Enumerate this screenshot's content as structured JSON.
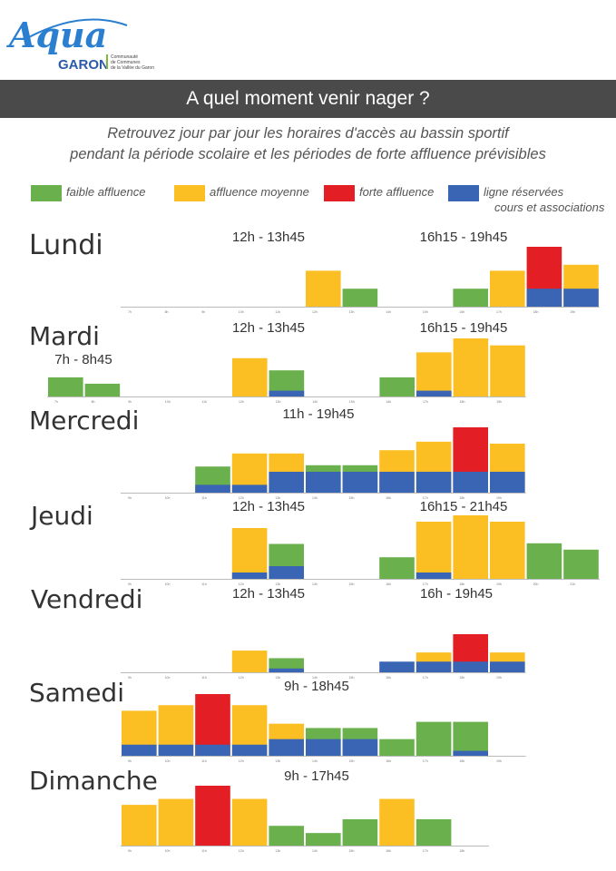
{
  "header": {
    "logo_text_1": "Aqua",
    "logo_text_2": "GARON",
    "logo_tagline": [
      "Communauté",
      "de Communes",
      "de la Vallée du Garon"
    ],
    "title": "A quel moment venir nager ?",
    "subtitle_line1": "Retrouvez jour par jour les horaires d'accès au bassin sportif",
    "subtitle_line2": "pendant la période scolaire et les périodes de forte affluence prévisibles"
  },
  "legend": [
    {
      "label": "faible affluence",
      "color": "#6ab04c"
    },
    {
      "label": "affluence moyenne",
      "color": "#fbbf24"
    },
    {
      "label": "forte affluence",
      "color": "#e31e24"
    },
    {
      "label": "ligne réservées",
      "label2": "cours et associations",
      "color": "#3a64b4"
    }
  ],
  "colors": {
    "faible": "#6ab04c",
    "moyenne": "#fbbf24",
    "forte": "#e31e24",
    "reserve": "#3a64b4",
    "axis": "#bbbbbb",
    "tick": "#777777"
  },
  "chart_data": [
    {
      "type": "bar",
      "day": "Lundi",
      "hour_labels": [
        "7h",
        "8h",
        "9h",
        "10h",
        "11h",
        "12h",
        "13h",
        "14h",
        "15h",
        "16h",
        "17h",
        "18h",
        "19h"
      ],
      "schedule_labels": [
        "12h - 13h45",
        "16h15 - 19h45"
      ],
      "bars": [
        {
          "hour": "12h",
          "value": 0.6,
          "level": "moyenne",
          "reserved": 0
        },
        {
          "hour": "13h",
          "value": 0.3,
          "level": "faible",
          "reserved": 0
        },
        {
          "hour": "16h",
          "value": 0.3,
          "level": "faible",
          "reserved": 0
        },
        {
          "hour": "17h",
          "value": 0.6,
          "level": "moyenne",
          "reserved": 0
        },
        {
          "hour": "18h",
          "value": 1.0,
          "level": "forte",
          "reserved": 0.3
        },
        {
          "hour": "19h",
          "value": 0.7,
          "level": "moyenne",
          "reserved": 0.3
        }
      ]
    },
    {
      "type": "bar",
      "day": "Mardi",
      "hour_labels": [
        "7h",
        "8h",
        "9h",
        "10h",
        "11h",
        "12h",
        "13h",
        "14h",
        "15h",
        "16h",
        "17h",
        "18h",
        "19h"
      ],
      "schedule_labels": [
        "7h - 8h45",
        "12h - 13h45",
        "16h15 - 19h45"
      ],
      "bars": [
        {
          "hour": "7h",
          "value": 0.33,
          "level": "faible",
          "reserved": 0
        },
        {
          "hour": "8h",
          "value": 0.22,
          "level": "faible",
          "reserved": 0
        },
        {
          "hour": "12h",
          "value": 0.66,
          "level": "moyenne",
          "reserved": 0
        },
        {
          "hour": "13h",
          "value": 0.45,
          "level": "faible",
          "reserved": 0.1
        },
        {
          "hour": "16h",
          "value": 0.33,
          "level": "faible",
          "reserved": 0
        },
        {
          "hour": "17h",
          "value": 0.76,
          "level": "moyenne",
          "reserved": 0.1
        },
        {
          "hour": "18h",
          "value": 1.0,
          "level": "moyenne",
          "reserved": 0
        },
        {
          "hour": "19h",
          "value": 0.88,
          "level": "moyenne",
          "reserved": 0
        }
      ]
    },
    {
      "type": "bar",
      "day": "Mercredi",
      "hour_labels": [
        "9h",
        "10h",
        "11h",
        "12h",
        "13h",
        "14h",
        "15h",
        "16h",
        "17h",
        "18h",
        "19h"
      ],
      "schedule_labels": [
        "11h - 19h45"
      ],
      "bars": [
        {
          "hour": "11h",
          "value": 0.4,
          "level": "faible",
          "reserved": 0.12
        },
        {
          "hour": "12h",
          "value": 0.6,
          "level": "moyenne",
          "reserved": 0.12
        },
        {
          "hour": "13h",
          "value": 0.6,
          "level": "moyenne",
          "reserved": 0.32
        },
        {
          "hour": "14h",
          "value": 0.42,
          "level": "faible",
          "reserved": 0.32
        },
        {
          "hour": "15h",
          "value": 0.42,
          "level": "faible",
          "reserved": 0.32
        },
        {
          "hour": "16h",
          "value": 0.65,
          "level": "moyenne",
          "reserved": 0.32
        },
        {
          "hour": "17h",
          "value": 0.78,
          "level": "moyenne",
          "reserved": 0.32
        },
        {
          "hour": "18h",
          "value": 1.0,
          "level": "forte",
          "reserved": 0.32
        },
        {
          "hour": "19h",
          "value": 0.75,
          "level": "moyenne",
          "reserved": 0.32
        }
      ]
    },
    {
      "type": "bar",
      "day": "Jeudi",
      "hour_labels": [
        "9h",
        "10h",
        "11h",
        "12h",
        "13h",
        "14h",
        "15h",
        "16h",
        "17h",
        "18h",
        "19h",
        "20h",
        "21h"
      ],
      "schedule_labels": [
        "12h - 13h45",
        "16h15 - 21h45"
      ],
      "bars": [
        {
          "hour": "12h",
          "value": 0.8,
          "level": "moyenne",
          "reserved": 0.1
        },
        {
          "hour": "13h",
          "value": 0.55,
          "level": "faible",
          "reserved": 0.2
        },
        {
          "hour": "16h",
          "value": 0.34,
          "level": "faible",
          "reserved": 0
        },
        {
          "hour": "17h",
          "value": 0.9,
          "level": "moyenne",
          "reserved": 0.1
        },
        {
          "hour": "18h",
          "value": 1.0,
          "level": "moyenne",
          "reserved": 0
        },
        {
          "hour": "19h",
          "value": 0.9,
          "level": "moyenne",
          "reserved": 0
        },
        {
          "hour": "20h",
          "value": 0.56,
          "level": "faible",
          "reserved": 0
        },
        {
          "hour": "21h",
          "value": 0.46,
          "level": "faible",
          "reserved": 0
        }
      ]
    },
    {
      "type": "bar",
      "day": "Vendredi",
      "hour_labels": [
        "9h",
        "10h",
        "11h",
        "12h",
        "13h",
        "14h",
        "15h",
        "16h",
        "17h",
        "18h",
        "19h"
      ],
      "schedule_labels": [
        "12h - 13h45",
        "16h - 19h45"
      ],
      "bars": [
        {
          "hour": "12h",
          "value": 0.57,
          "level": "moyenne",
          "reserved": 0
        },
        {
          "hour": "13h",
          "value": 0.37,
          "level": "faible",
          "reserved": 0.1
        },
        {
          "hour": "16h",
          "value": 0.28,
          "level": "reserve",
          "reserved": 0.28
        },
        {
          "hour": "17h",
          "value": 0.52,
          "level": "moyenne",
          "reserved": 0.28
        },
        {
          "hour": "18h",
          "value": 1.0,
          "level": "forte",
          "reserved": 0.28
        },
        {
          "hour": "19h",
          "value": 0.52,
          "level": "moyenne",
          "reserved": 0.28
        }
      ]
    },
    {
      "type": "bar",
      "day": "Samedi",
      "hour_labels": [
        "9h",
        "10h",
        "11h",
        "12h",
        "13h",
        "14h",
        "15h",
        "16h",
        "17h",
        "18h",
        "19h"
      ],
      "schedule_labels": [
        "9h - 18h45"
      ],
      "bars": [
        {
          "hour": "9h",
          "value": 0.73,
          "level": "moyenne",
          "reserved": 0.18
        },
        {
          "hour": "10h",
          "value": 0.82,
          "level": "moyenne",
          "reserved": 0.18
        },
        {
          "hour": "11h",
          "value": 1.0,
          "level": "forte",
          "reserved": 0.18
        },
        {
          "hour": "12h",
          "value": 0.82,
          "level": "moyenne",
          "reserved": 0.18
        },
        {
          "hour": "13h",
          "value": 0.52,
          "level": "moyenne",
          "reserved": 0.27
        },
        {
          "hour": "14h",
          "value": 0.45,
          "level": "faible",
          "reserved": 0.27
        },
        {
          "hour": "15h",
          "value": 0.45,
          "level": "faible",
          "reserved": 0.27
        },
        {
          "hour": "16h",
          "value": 0.27,
          "level": "faible",
          "reserved": 0
        },
        {
          "hour": "17h",
          "value": 0.55,
          "level": "faible",
          "reserved": 0
        },
        {
          "hour": "18h",
          "value": 0.55,
          "level": "faible",
          "reserved": 0.08
        }
      ]
    },
    {
      "type": "bar",
      "day": "Dimanche",
      "hour_labels": [
        "9h",
        "10h",
        "11h",
        "12h",
        "13h",
        "14h",
        "15h",
        "16h",
        "17h",
        "18h"
      ],
      "schedule_labels": [
        "9h - 17h45"
      ],
      "bars": [
        {
          "hour": "9h",
          "value": 0.68,
          "level": "moyenne",
          "reserved": 0
        },
        {
          "hour": "10h",
          "value": 0.78,
          "level": "moyenne",
          "reserved": 0
        },
        {
          "hour": "11h",
          "value": 1.0,
          "level": "forte",
          "reserved": 0
        },
        {
          "hour": "12h",
          "value": 0.78,
          "level": "moyenne",
          "reserved": 0
        },
        {
          "hour": "13h",
          "value": 0.33,
          "level": "faible",
          "reserved": 0
        },
        {
          "hour": "14h",
          "value": 0.21,
          "level": "faible",
          "reserved": 0
        },
        {
          "hour": "15h",
          "value": 0.44,
          "level": "faible",
          "reserved": 0
        },
        {
          "hour": "16h",
          "value": 0.78,
          "level": "moyenne",
          "reserved": 0
        },
        {
          "hour": "17h",
          "value": 0.44,
          "level": "faible",
          "reserved": 0
        }
      ]
    }
  ]
}
